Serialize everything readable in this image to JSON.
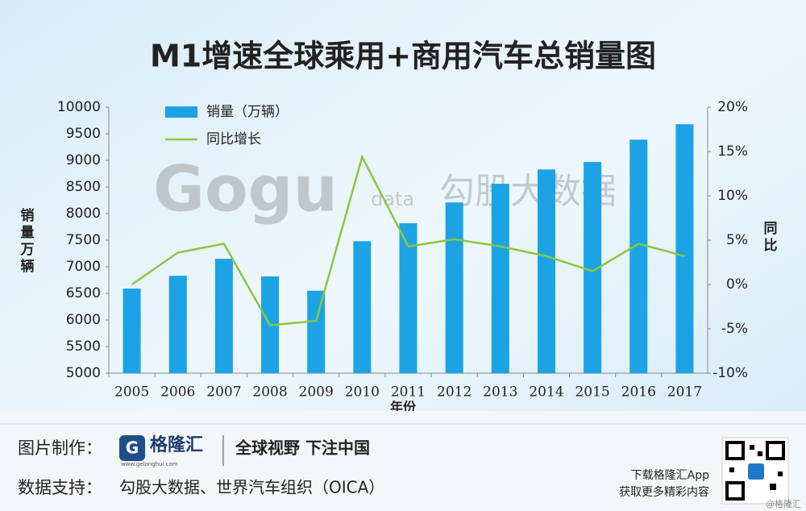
{
  "chart_data": {
    "type": "bar",
    "title": "M1增速全球乘用+商用汽车总销量图",
    "x_label": "年份",
    "y_label": "销量万辆",
    "y2_label": "同比",
    "watermark": [
      "Gogu",
      "data",
      "勾股大数据"
    ],
    "categories": [
      "2005",
      "2006",
      "2007",
      "2008",
      "2009",
      "2010",
      "2011",
      "2012",
      "2013",
      "2014",
      "2015",
      "2016",
      "2017"
    ],
    "series": [
      {
        "name": "销量（万辆）",
        "type": "bar",
        "color": "#1ba3e6",
        "values": [
          6590,
          6830,
          7150,
          6820,
          6550,
          7480,
          7820,
          8210,
          8560,
          8830,
          8970,
          9390,
          9680
        ]
      },
      {
        "name": "同比增长",
        "type": "line",
        "axis": "y2",
        "color": "#8dc63f",
        "values": [
          0,
          3.6,
          4.6,
          -4.6,
          -4.1,
          14.4,
          4.3,
          5.1,
          4.3,
          3.2,
          1.5,
          4.6,
          3.2
        ]
      }
    ],
    "ylim": [
      5000,
      10000
    ],
    "yticks": [
      5000,
      5500,
      6000,
      6500,
      7000,
      7500,
      8000,
      8500,
      9000,
      9500,
      10000
    ],
    "y2lim": [
      -10,
      20
    ],
    "y2ticks": [
      {
        "value": -10,
        "label": "-10%"
      },
      {
        "value": -5,
        "label": "-5%"
      },
      {
        "value": 0,
        "label": "0%"
      },
      {
        "value": 5,
        "label": "5%"
      },
      {
        "value": 10,
        "label": "10%"
      },
      {
        "value": 15,
        "label": "15%"
      },
      {
        "value": 20,
        "label": "20%"
      }
    ],
    "legend": "top-left"
  },
  "footer": {
    "made_by_label": "图片制作：",
    "logo": "格隆汇",
    "logo_url": "www.gelonghui.com",
    "slogan": "全球视野 下注中国",
    "source_label": "数据支持：",
    "source": "勾股大数据、世界汽车组织（OICA）",
    "app_line1": "下载格隆汇App",
    "app_line2": "获取更多精彩内容",
    "credit": "@格隆汇"
  }
}
